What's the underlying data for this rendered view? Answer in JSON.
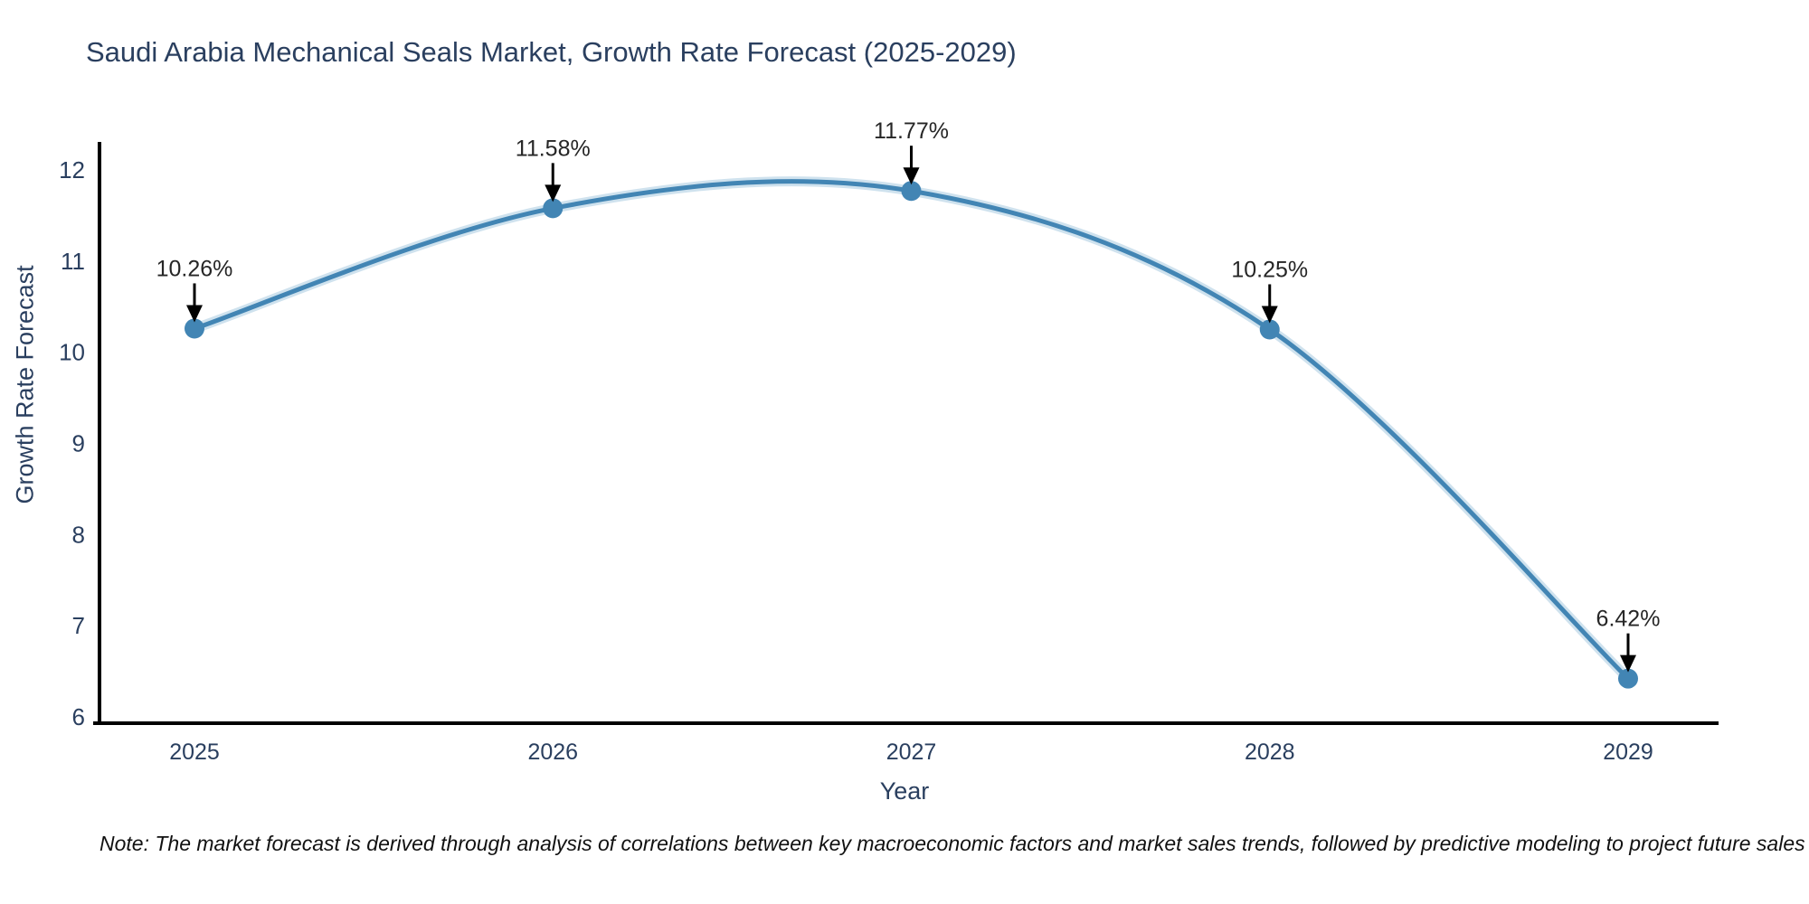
{
  "chart_data": {
    "type": "line",
    "title": "Saudi Arabia Mechanical Seals Market, Growth Rate Forecast (2025-2029)",
    "xlabel": "Year",
    "ylabel": "Growth Rate Forecast",
    "x": [
      "2025",
      "2026",
      "2027",
      "2028",
      "2029"
    ],
    "y": [
      10.26,
      11.58,
      11.77,
      10.25,
      6.42
    ],
    "point_labels": [
      "10.26%",
      "11.58%",
      "11.77%",
      "10.25%",
      "6.42%"
    ],
    "yticks": [
      6,
      7,
      8,
      9,
      10,
      11,
      12
    ],
    "ylim": [
      5.93,
      12.3
    ],
    "grid": false,
    "legend_position": "none",
    "smooth": true,
    "line_color": "#4285b4",
    "halo_color": "#a8cbe0",
    "marker_color": "#4285b4",
    "axis_color": "#000000",
    "tick_label_color": "#2a3f5f",
    "annotation_color": "#262626",
    "annotation_style": "arrow-down"
  },
  "note": {
    "text": "Note: The market forecast is derived through analysis of correlations between key macroeconomic factors and market sales trends, followed by predictive modeling to project future sales"
  }
}
